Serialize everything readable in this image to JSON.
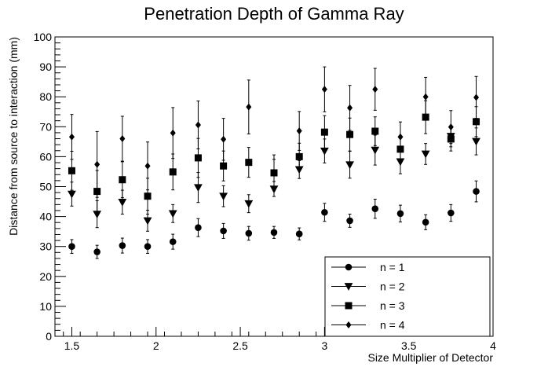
{
  "chart_data": {
    "type": "scatter",
    "title": "Penetration Depth of Gamma Ray",
    "xlabel": "Size Multiplier of Detector",
    "ylabel": "Distance from source to interaction (mm)",
    "xlim": [
      1.4,
      4.0
    ],
    "ylim": [
      0,
      100
    ],
    "x_ticks": [
      1.5,
      2,
      2.5,
      3,
      3.5,
      4
    ],
    "x_tick_labels": [
      "1.5",
      "2",
      "2.5",
      "3",
      "3.5",
      "4"
    ],
    "y_ticks": [
      0,
      10,
      20,
      30,
      40,
      50,
      60,
      70,
      80,
      90,
      100
    ],
    "y_tick_labels": [
      "0",
      "10",
      "20",
      "30",
      "40",
      "50",
      "60",
      "70",
      "80",
      "90",
      "100"
    ],
    "grid": false,
    "legend_position": "bottom-right",
    "x": [
      1.5,
      1.65,
      1.8,
      1.95,
      2.1,
      2.25,
      2.4,
      2.55,
      2.7,
      2.85,
      3.0,
      3.15,
      3.3,
      3.45,
      3.6,
      3.75,
      3.9
    ],
    "series": [
      {
        "name": "n = 1",
        "marker": "circle",
        "values": [
          30,
          28.2,
          30.3,
          30,
          31.6,
          36.3,
          35.2,
          34.4,
          34.7,
          34.2,
          41.4,
          38.6,
          42.6,
          41,
          38.1,
          41.2,
          48.4
        ],
        "errors": [
          2.3,
          2.2,
          2.5,
          2.3,
          2.5,
          3.0,
          2.5,
          2.3,
          2.0,
          2.0,
          3.0,
          2.2,
          3.2,
          2.8,
          2.5,
          2.8,
          3.5
        ]
      },
      {
        "name": "n = 2",
        "marker": "triangle-down",
        "values": [
          47.5,
          40.8,
          44.8,
          38.6,
          41,
          49.7,
          46.8,
          44.3,
          49.2,
          55.7,
          61.9,
          57.3,
          62.2,
          58.3,
          60.9,
          66.8,
          65.1
        ],
        "errors": [
          4.0,
          4.5,
          4.0,
          3.5,
          3.0,
          5.0,
          3.5,
          3.0,
          2.5,
          3.0,
          4.0,
          4.5,
          5.0,
          4.0,
          3.5,
          3.5,
          4.5
        ]
      },
      {
        "name": "n = 3",
        "marker": "square",
        "values": [
          55.3,
          48.4,
          52.3,
          46.8,
          54.9,
          59.6,
          56.9,
          58.1,
          54.6,
          60,
          68.2,
          67.4,
          68.5,
          62.5,
          73.2,
          65.9,
          71.7
        ],
        "errors": [
          6.5,
          7.0,
          6.0,
          6.0,
          6.0,
          6.5,
          5.0,
          5.0,
          4.5,
          4.5,
          5.5,
          5.5,
          4.8,
          3.7,
          5.5,
          4.0,
          5.0
        ]
      },
      {
        "name": "n = 4",
        "marker": "diamond",
        "values": [
          66.6,
          57.4,
          66,
          56.9,
          67.9,
          70.6,
          65.8,
          76.6,
          54.6,
          68.6,
          82.5,
          76.3,
          82.5,
          66.6,
          80,
          69.9,
          79.8
        ],
        "errors": [
          7.5,
          11.0,
          7.5,
          8.0,
          8.5,
          8.0,
          7.0,
          9.0,
          6.0,
          6.5,
          7.5,
          7.5,
          7.0,
          5.0,
          6.5,
          5.5,
          7.0
        ]
      }
    ]
  }
}
